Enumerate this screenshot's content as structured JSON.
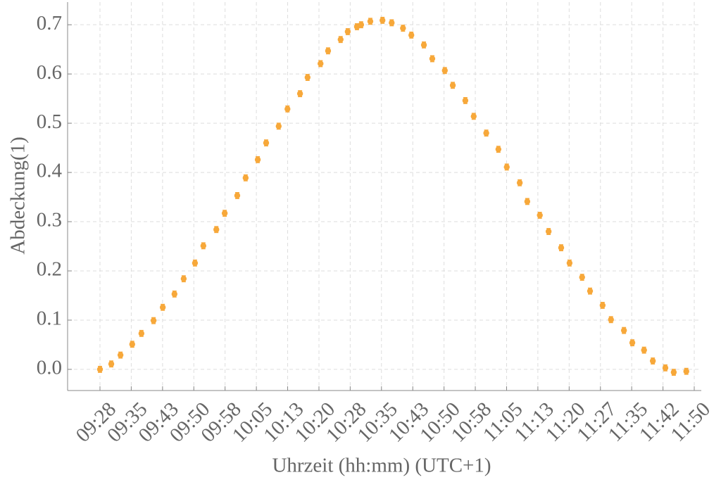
{
  "chart_data": {
    "type": "scatter",
    "xlabel": "Uhrzeit (hh:mm) (UTC+1)",
    "ylabel": "Abdeckung(1)",
    "xlim": [
      560.26,
      711.68
    ],
    "ylim": [
      -0.043,
      0.746
    ],
    "xticks": [
      {
        "value": 568,
        "label": "09:28"
      },
      {
        "value": 575.47,
        "label": "09:35"
      },
      {
        "value": 582.95,
        "label": "09:43"
      },
      {
        "value": 590.42,
        "label": "09:50"
      },
      {
        "value": 597.89,
        "label": "09:58"
      },
      {
        "value": 605.37,
        "label": "10:05"
      },
      {
        "value": 612.84,
        "label": "10:13"
      },
      {
        "value": 620.32,
        "label": "10:20"
      },
      {
        "value": 627.79,
        "label": "10:28"
      },
      {
        "value": 635.26,
        "label": "10:35"
      },
      {
        "value": 642.74,
        "label": "10:43"
      },
      {
        "value": 650.21,
        "label": "10:50"
      },
      {
        "value": 657.68,
        "label": "10:58"
      },
      {
        "value": 665.16,
        "label": "11:05"
      },
      {
        "value": 672.63,
        "label": "11:13"
      },
      {
        "value": 680.11,
        "label": "11:20"
      },
      {
        "value": 687.58,
        "label": "11:27"
      },
      {
        "value": 695.05,
        "label": "11:35"
      },
      {
        "value": 702.53,
        "label": "11:42"
      },
      {
        "value": 710,
        "label": "11:50"
      }
    ],
    "yticks": [
      {
        "value": 0,
        "label": "0.0"
      },
      0.1,
      0.2,
      0.3,
      0.4,
      0.5,
      0.6,
      0.7
    ],
    "grid": true,
    "series": [
      {
        "color": "#f7a83a",
        "x": [
          568.0,
          570.7,
          572.9,
          575.7,
          577.9,
          580.8,
          583.0,
          585.8,
          588.0,
          590.7,
          592.7,
          595.8,
          597.8,
          600.8,
          602.8,
          605.7,
          607.7,
          610.7,
          612.8,
          615.8,
          617.6,
          620.7,
          622.5,
          625.5,
          627.2,
          629.4,
          630.4,
          632.6,
          635.5,
          637.7,
          640.4,
          642.4,
          645.4,
          647.4,
          650.4,
          652.3,
          655.3,
          657.3,
          660.3,
          663.2,
          665.2,
          668.3,
          670.1,
          673.1,
          675.2,
          678.2,
          680.2,
          683.2,
          685.1,
          688.1,
          690.1,
          693.2,
          695.2,
          698.0,
          700.1,
          703.1,
          705.1,
          708.1
        ],
        "values": [
          0.0,
          0.011,
          0.029,
          0.051,
          0.073,
          0.099,
          0.126,
          0.153,
          0.184,
          0.216,
          0.251,
          0.284,
          0.317,
          0.353,
          0.389,
          0.426,
          0.46,
          0.494,
          0.529,
          0.56,
          0.593,
          0.621,
          0.647,
          0.67,
          0.686,
          0.696,
          0.7,
          0.707,
          0.709,
          0.704,
          0.693,
          0.679,
          0.659,
          0.631,
          0.607,
          0.577,
          0.546,
          0.514,
          0.48,
          0.447,
          0.411,
          0.379,
          0.341,
          0.313,
          0.28,
          0.247,
          0.216,
          0.187,
          0.159,
          0.13,
          0.101,
          0.079,
          0.054,
          0.039,
          0.017,
          0.003,
          -0.006,
          -0.004
        ],
        "errors": [
          0.006,
          0.006,
          0.006,
          0.006,
          0.006,
          0.006,
          0.006,
          0.006,
          0.006,
          0.006,
          0.006,
          0.006,
          0.006,
          0.006,
          0.006,
          0.006,
          0.006,
          0.006,
          0.006,
          0.006,
          0.006,
          0.006,
          0.006,
          0.006,
          0.006,
          0.006,
          0.006,
          0.006,
          0.006,
          0.006,
          0.006,
          0.006,
          0.006,
          0.006,
          0.006,
          0.006,
          0.006,
          0.006,
          0.006,
          0.006,
          0.006,
          0.006,
          0.006,
          0.006,
          0.006,
          0.006,
          0.006,
          0.006,
          0.006,
          0.006,
          0.006,
          0.006,
          0.006,
          0.006,
          0.006,
          0.006,
          0.006,
          0.006
        ]
      }
    ]
  }
}
